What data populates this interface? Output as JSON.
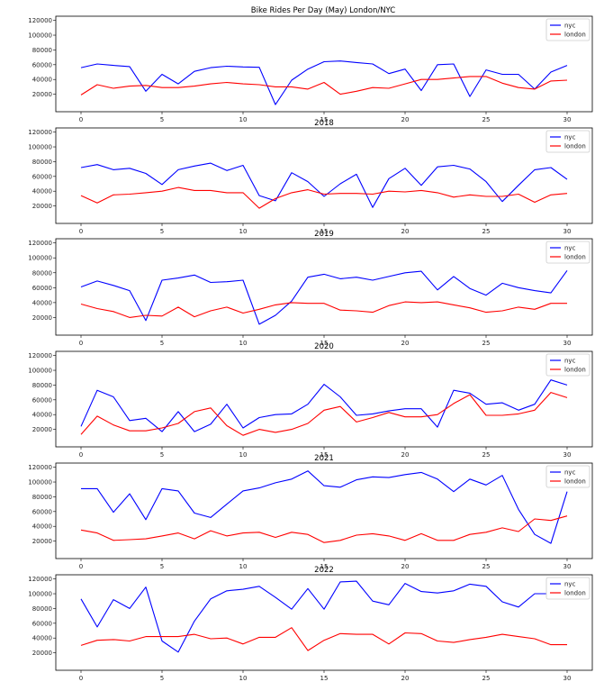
{
  "figure": {
    "title": "Bike Rides Per Day (May) London/NYC"
  },
  "chart_data": [
    {
      "type": "line",
      "title": "",
      "x": [
        0,
        1,
        2,
        3,
        4,
        5,
        6,
        7,
        8,
        9,
        10,
        11,
        12,
        13,
        14,
        15,
        16,
        17,
        18,
        19,
        20,
        21,
        22,
        23,
        24,
        25,
        26,
        27,
        28,
        29,
        30
      ],
      "xticks": [
        0,
        5,
        10,
        15,
        20,
        25,
        30
      ],
      "ylim": [
        0,
        120000
      ],
      "yticks": [
        20000,
        40000,
        60000,
        80000,
        100000,
        120000
      ],
      "legend": "top-right",
      "series": [
        {
          "name": "nyc",
          "color": "#0000ff",
          "values": [
            56000,
            61000,
            59000,
            57500,
            24000,
            47000,
            34000,
            51000,
            56000,
            58000,
            57000,
            56500,
            6000,
            39000,
            54000,
            64000,
            65000,
            63000,
            61000,
            48000,
            54000,
            25000,
            60000,
            61000,
            17000,
            53000,
            47000,
            47000,
            27000,
            50000,
            59000
          ]
        },
        {
          "name": "london",
          "color": "#ff0000",
          "values": [
            19000,
            33000,
            28000,
            31000,
            32000,
            29000,
            29000,
            31000,
            34000,
            36000,
            34000,
            33000,
            30000,
            30000,
            27000,
            36000,
            20000,
            24000,
            29000,
            28000,
            34000,
            40000,
            40000,
            42000,
            44000,
            44000,
            35000,
            29000,
            27000,
            38000,
            39000
          ]
        }
      ]
    },
    {
      "type": "line",
      "title": "2018",
      "x": [
        0,
        1,
        2,
        3,
        4,
        5,
        6,
        7,
        8,
        9,
        10,
        11,
        12,
        13,
        14,
        15,
        16,
        17,
        18,
        19,
        20,
        21,
        22,
        23,
        24,
        25,
        26,
        27,
        28,
        29,
        30
      ],
      "xticks": [
        0,
        5,
        10,
        15,
        20,
        25,
        30
      ],
      "ylim": [
        0,
        120000
      ],
      "yticks": [
        20000,
        40000,
        60000,
        80000,
        100000,
        120000
      ],
      "legend": "top-right",
      "series": [
        {
          "name": "nyc",
          "color": "#0000ff",
          "values": [
            72000,
            76000,
            69000,
            71000,
            64000,
            49000,
            69000,
            74000,
            78000,
            68000,
            75000,
            34000,
            27000,
            65000,
            53000,
            33000,
            50000,
            63000,
            18000,
            57000,
            71000,
            48000,
            73000,
            75000,
            70000,
            53000,
            26000,
            48000,
            69000,
            72000,
            56000
          ]
        },
        {
          "name": "london",
          "color": "#ff0000",
          "values": [
            34000,
            24000,
            35000,
            36000,
            38000,
            40000,
            45000,
            41000,
            41000,
            38000,
            38000,
            17000,
            30000,
            38000,
            42000,
            36000,
            37000,
            37000,
            36000,
            40000,
            39000,
            41000,
            38000,
            32000,
            35000,
            33000,
            33000,
            36000,
            25000,
            35000,
            37000
          ]
        }
      ]
    },
    {
      "type": "line",
      "title": "2019",
      "x": [
        0,
        1,
        2,
        3,
        4,
        5,
        6,
        7,
        8,
        9,
        10,
        11,
        12,
        13,
        14,
        15,
        16,
        17,
        18,
        19,
        20,
        21,
        22,
        23,
        24,
        25,
        26,
        27,
        28,
        29,
        30
      ],
      "xticks": [
        0,
        5,
        10,
        15,
        20,
        25,
        30
      ],
      "ylim": [
        0,
        120000
      ],
      "yticks": [
        20000,
        40000,
        60000,
        80000,
        100000,
        120000
      ],
      "legend": "top-right",
      "series": [
        {
          "name": "nyc",
          "color": "#0000ff",
          "values": [
            61000,
            69000,
            63000,
            56000,
            16000,
            70000,
            73000,
            77000,
            67000,
            68000,
            70000,
            11000,
            23000,
            42000,
            74000,
            78000,
            72000,
            74000,
            70000,
            75000,
            80000,
            82000,
            57000,
            75000,
            59000,
            50000,
            66000,
            60000,
            56000,
            53000,
            83000
          ]
        },
        {
          "name": "london",
          "color": "#ff0000",
          "values": [
            38000,
            32000,
            28000,
            20000,
            23000,
            22000,
            34000,
            21000,
            29000,
            34000,
            26000,
            31000,
            37000,
            40000,
            39000,
            39000,
            30000,
            29000,
            27000,
            36000,
            41000,
            40000,
            41000,
            37000,
            33000,
            27000,
            29000,
            34000,
            31000,
            39000,
            39000
          ]
        }
      ]
    },
    {
      "type": "line",
      "title": "2020",
      "x": [
        0,
        1,
        2,
        3,
        4,
        5,
        6,
        7,
        8,
        9,
        10,
        11,
        12,
        13,
        14,
        15,
        16,
        17,
        18,
        19,
        20,
        21,
        22,
        23,
        24,
        25,
        26,
        27,
        28,
        29,
        30
      ],
      "xticks": [
        0,
        5,
        10,
        15,
        20,
        25,
        30
      ],
      "ylim": [
        0,
        120000
      ],
      "yticks": [
        20000,
        40000,
        60000,
        80000,
        100000,
        120000
      ],
      "legend": "top-right",
      "series": [
        {
          "name": "nyc",
          "color": "#0000ff",
          "values": [
            24000,
            73000,
            64000,
            32000,
            35000,
            17000,
            44000,
            17000,
            27000,
            54000,
            22000,
            36000,
            40000,
            41000,
            54000,
            81000,
            64000,
            39000,
            41000,
            45000,
            48000,
            48000,
            23000,
            73000,
            69000,
            54000,
            56000,
            46000,
            54000,
            87000,
            80000
          ]
        },
        {
          "name": "london",
          "color": "#ff0000",
          "values": [
            13000,
            38000,
            26000,
            18000,
            18000,
            22000,
            28000,
            44000,
            49000,
            25000,
            12000,
            20000,
            16000,
            20000,
            28000,
            46000,
            51000,
            30000,
            36000,
            43000,
            37000,
            37000,
            40000,
            55000,
            67000,
            39000,
            39000,
            41000,
            46000,
            70000,
            63000
          ]
        }
      ]
    },
    {
      "type": "line",
      "title": "2021",
      "x": [
        0,
        1,
        2,
        3,
        4,
        5,
        6,
        7,
        8,
        9,
        10,
        11,
        12,
        13,
        14,
        15,
        16,
        17,
        18,
        19,
        20,
        21,
        22,
        23,
        24,
        25,
        26,
        27,
        28,
        29,
        30
      ],
      "xticks": [
        0,
        5,
        10,
        15,
        20,
        25,
        30
      ],
      "ylim": [
        0,
        120000
      ],
      "yticks": [
        20000,
        40000,
        60000,
        80000,
        100000,
        120000
      ],
      "legend": "top-right",
      "series": [
        {
          "name": "nyc",
          "color": "#0000ff",
          "values": [
            91000,
            91000,
            59000,
            84000,
            49000,
            91000,
            88000,
            58000,
            52000,
            70000,
            88000,
            92000,
            99000,
            104000,
            115000,
            95000,
            93000,
            103000,
            107000,
            106000,
            110000,
            113000,
            104000,
            87000,
            104000,
            96000,
            109000,
            63000,
            29000,
            17000,
            87000
          ]
        },
        {
          "name": "london",
          "color": "#ff0000",
          "values": [
            35000,
            31000,
            21000,
            22000,
            23000,
            27000,
            31000,
            23000,
            34000,
            27000,
            31000,
            32000,
            25000,
            32000,
            29000,
            18000,
            21000,
            28000,
            30000,
            27000,
            21000,
            30000,
            21000,
            21000,
            29000,
            32000,
            38000,
            33000,
            50000,
            48000,
            54000
          ]
        }
      ]
    },
    {
      "type": "line",
      "title": "2022",
      "x": [
        0,
        1,
        2,
        3,
        4,
        5,
        6,
        7,
        8,
        9,
        10,
        11,
        12,
        13,
        14,
        15,
        16,
        17,
        18,
        19,
        20,
        21,
        22,
        23,
        24,
        25,
        26,
        27,
        28,
        29,
        30
      ],
      "xticks": [
        0,
        5,
        10,
        15,
        20,
        25,
        30
      ],
      "ylim": [
        0,
        120000
      ],
      "yticks": [
        20000,
        40000,
        60000,
        80000,
        100000,
        120000
      ],
      "legend": "top-right",
      "series": [
        {
          "name": "nyc",
          "color": "#0000ff",
          "values": [
            93000,
            55000,
            92000,
            80000,
            109000,
            36000,
            21000,
            63000,
            93000,
            104000,
            106000,
            110000,
            95000,
            79000,
            107000,
            79000,
            116000,
            117000,
            90000,
            85000,
            114000,
            103000,
            101000,
            104000,
            113000,
            110000,
            89000,
            82000,
            100000,
            100000,
            100000
          ]
        },
        {
          "name": "london",
          "color": "#ff0000",
          "values": [
            30000,
            37000,
            38000,
            36000,
            42000,
            42000,
            42000,
            45000,
            39000,
            40000,
            32000,
            41000,
            41000,
            54000,
            23000,
            37000,
            46000,
            45000,
            45000,
            32000,
            47000,
            46000,
            36000,
            34000,
            38000,
            41000,
            45000,
            42000,
            39000,
            31000,
            31000
          ]
        }
      ]
    }
  ]
}
